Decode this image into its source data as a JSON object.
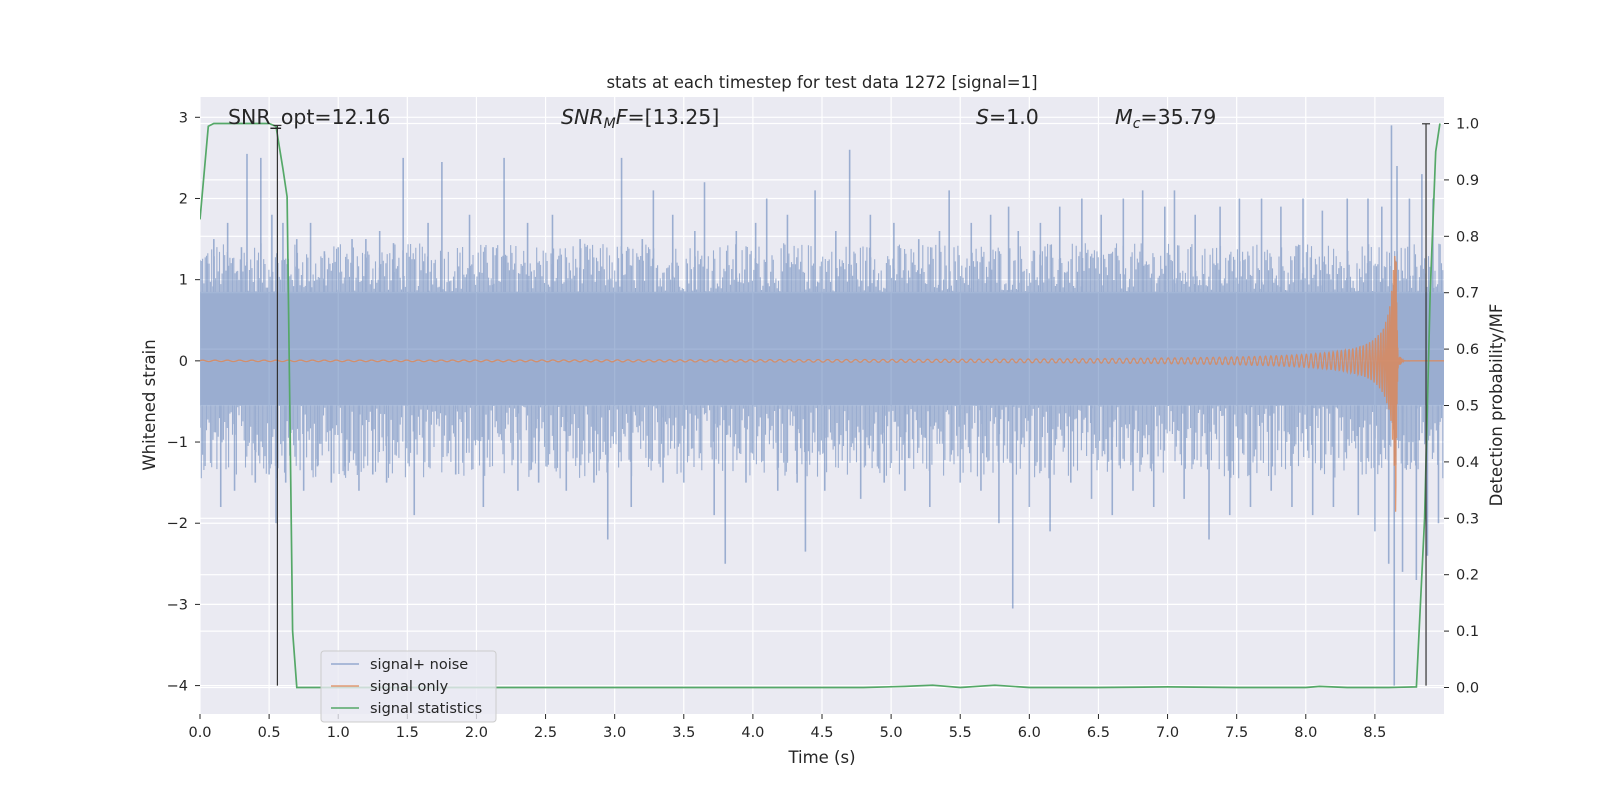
{
  "chart_data": {
    "type": "line",
    "title": "stats at each timestep for test data 1272 [signal=1]",
    "xlabel": "Time (s)",
    "ylabel": "Whitened strain",
    "y2label": "Detection probability/MF",
    "xlim": [
      0.0,
      9.0
    ],
    "ylim": [
      -4.35,
      3.25
    ],
    "y2lim": [
      -0.047,
      1.047
    ],
    "x_ticks": [
      "0.0",
      "0.5",
      "1.0",
      "1.5",
      "2.0",
      "2.5",
      "3.0",
      "3.5",
      "4.0",
      "4.5",
      "5.0",
      "5.5",
      "6.0",
      "6.5",
      "7.0",
      "7.5",
      "8.0",
      "8.5"
    ],
    "y_ticks": [
      "3",
      "2",
      "1",
      "0",
      "−1",
      "−2",
      "−3",
      "−4"
    ],
    "y2_ticks": [
      "1.0",
      "0.9",
      "0.8",
      "0.7",
      "0.6",
      "0.5",
      "0.4",
      "0.3",
      "0.2",
      "0.1",
      "0.0"
    ],
    "grid": true,
    "legend_position": "lower-left",
    "annotations": {
      "snr_opt": "SNR_opt=12.16",
      "snr_mf_sym": "SNR",
      "snr_mf_sub": "M",
      "snr_mf_sym2": "F",
      "snr_mf_val": "=[13.25]",
      "s_sym": "S",
      "s_val": "=1.0",
      "mc_sym": "M",
      "mc_sub": "c",
      "mc_val": "=35.79"
    },
    "vertical_markers": [
      {
        "x": 0.56,
        "ymin": -4.0,
        "ymax": 2.9
      },
      {
        "x": 8.87,
        "ymin": -4.0,
        "ymax": 2.92
      }
    ],
    "series": [
      {
        "name": "signal+ noise",
        "color": "#4c72b0",
        "axis": "left",
        "x": [
          0.0,
          9.0
        ],
        "band_outer": [
          -1.0,
          1.1
        ],
        "band_inner": [
          -0.55,
          0.85
        ],
        "spikes": [
          [
            0.05,
            1.2
          ],
          [
            0.1,
            1.5
          ],
          [
            0.15,
            -1.8
          ],
          [
            0.2,
            1.7
          ],
          [
            0.25,
            -1.6
          ],
          [
            0.3,
            1.4
          ],
          [
            0.34,
            2.55
          ],
          [
            0.4,
            -1.5
          ],
          [
            0.44,
            2.5
          ],
          [
            0.5,
            -1.4
          ],
          [
            0.52,
            1.8
          ],
          [
            0.55,
            -2.0
          ],
          [
            0.6,
            1.7
          ],
          [
            0.62,
            -1.5
          ],
          [
            0.7,
            1.5
          ],
          [
            0.75,
            -1.6
          ],
          [
            0.8,
            1.7
          ],
          [
            0.85,
            -1.3
          ],
          [
            0.9,
            1.35
          ],
          [
            0.95,
            -1.5
          ],
          [
            1.0,
            1.4
          ],
          [
            1.05,
            -1.3
          ],
          [
            1.1,
            1.5
          ],
          [
            1.15,
            -1.6
          ],
          [
            1.2,
            1.5
          ],
          [
            1.25,
            -1.4
          ],
          [
            1.3,
            1.6
          ],
          [
            1.35,
            -1.5
          ],
          [
            1.4,
            1.45
          ],
          [
            1.47,
            2.5
          ],
          [
            1.55,
            -1.9
          ],
          [
            1.65,
            1.7
          ],
          [
            1.75,
            2.45
          ],
          [
            1.85,
            -1.4
          ],
          [
            1.95,
            1.8
          ],
          [
            2.05,
            -1.8
          ],
          [
            2.12,
            1.4
          ],
          [
            2.2,
            2.5
          ],
          [
            2.3,
            -1.6
          ],
          [
            2.37,
            1.7
          ],
          [
            2.45,
            -1.5
          ],
          [
            2.55,
            1.8
          ],
          [
            2.65,
            -1.6
          ],
          [
            2.75,
            1.5
          ],
          [
            2.85,
            -1.5
          ],
          [
            2.95,
            -2.2
          ],
          [
            3.05,
            2.5
          ],
          [
            3.12,
            -1.8
          ],
          [
            3.2,
            1.5
          ],
          [
            3.28,
            2.1
          ],
          [
            3.35,
            -1.5
          ],
          [
            3.42,
            1.8
          ],
          [
            3.5,
            -1.5
          ],
          [
            3.58,
            1.6
          ],
          [
            3.65,
            2.2
          ],
          [
            3.72,
            -1.9
          ],
          [
            3.8,
            -2.5
          ],
          [
            3.88,
            1.6
          ],
          [
            3.95,
            -1.5
          ],
          [
            4.02,
            1.7
          ],
          [
            4.1,
            2.0
          ],
          [
            4.18,
            -1.6
          ],
          [
            4.25,
            1.8
          ],
          [
            4.32,
            -1.5
          ],
          [
            4.38,
            -2.35
          ],
          [
            4.45,
            2.1
          ],
          [
            4.52,
            -1.6
          ],
          [
            4.6,
            1.6
          ],
          [
            4.7,
            2.6
          ],
          [
            4.78,
            -1.7
          ],
          [
            4.85,
            1.8
          ],
          [
            4.95,
            -1.5
          ],
          [
            5.02,
            1.7
          ],
          [
            5.1,
            -1.6
          ],
          [
            5.2,
            1.5
          ],
          [
            5.28,
            -1.8
          ],
          [
            5.35,
            1.6
          ],
          [
            5.42,
            2.1
          ],
          [
            5.5,
            -1.5
          ],
          [
            5.58,
            1.7
          ],
          [
            5.65,
            -1.6
          ],
          [
            5.72,
            1.8
          ],
          [
            5.78,
            -2.0
          ],
          [
            5.85,
            1.9
          ],
          [
            5.88,
            -3.05
          ],
          [
            5.92,
            1.6
          ],
          [
            6.0,
            -1.8
          ],
          [
            6.08,
            1.7
          ],
          [
            6.15,
            -2.1
          ],
          [
            6.22,
            1.9
          ],
          [
            6.3,
            -1.5
          ],
          [
            6.38,
            2.0
          ],
          [
            6.45,
            -1.7
          ],
          [
            6.52,
            1.8
          ],
          [
            6.6,
            -1.9
          ],
          [
            6.68,
            2.0
          ],
          [
            6.75,
            -1.6
          ],
          [
            6.82,
            2.1
          ],
          [
            6.9,
            -1.8
          ],
          [
            6.98,
            1.9
          ],
          [
            7.05,
            2.1
          ],
          [
            7.12,
            -1.7
          ],
          [
            7.2,
            1.8
          ],
          [
            7.3,
            -2.2
          ],
          [
            7.38,
            1.9
          ],
          [
            7.45,
            -1.9
          ],
          [
            7.52,
            2.0
          ],
          [
            7.6,
            -1.8
          ],
          [
            7.68,
            2.0
          ],
          [
            7.75,
            -1.6
          ],
          [
            7.82,
            1.9
          ],
          [
            7.9,
            -1.8
          ],
          [
            7.98,
            2.0
          ],
          [
            8.05,
            -1.9
          ],
          [
            8.12,
            1.85
          ],
          [
            8.2,
            -1.8
          ],
          [
            8.3,
            2.0
          ],
          [
            8.38,
            -1.9
          ],
          [
            8.45,
            2.0
          ],
          [
            8.5,
            -2.1
          ],
          [
            8.55,
            1.9
          ],
          [
            8.6,
            -2.5
          ],
          [
            8.62,
            2.9
          ],
          [
            8.64,
            -4.0
          ],
          [
            8.66,
            2.4
          ],
          [
            8.7,
            -2.6
          ],
          [
            8.75,
            2.0
          ],
          [
            8.8,
            -2.7
          ],
          [
            8.84,
            2.3
          ],
          [
            8.88,
            -2.4
          ],
          [
            8.92,
            2.0
          ],
          [
            8.96,
            -2.0
          ]
        ]
      },
      {
        "name": "signal only",
        "color": "#dd8452",
        "axis": "left",
        "t_merger": 8.65,
        "amplitude_peak": 1.9
      },
      {
        "name": "signal statistics",
        "color": "#55a868",
        "axis": "right",
        "x": [
          0.0,
          0.06,
          0.1,
          0.2,
          0.3,
          0.4,
          0.5,
          0.55,
          0.6,
          0.63,
          0.65,
          0.67,
          0.7,
          1.0,
          2.0,
          3.0,
          4.0,
          4.8,
          5.1,
          5.3,
          5.5,
          5.75,
          6.0,
          6.5,
          7.0,
          7.5,
          8.0,
          8.1,
          8.3,
          8.6,
          8.8,
          8.86,
          8.9,
          8.94,
          8.97
        ],
        "values": [
          0.83,
          0.995,
          1.0,
          1.0,
          1.0,
          1.0,
          1.0,
          0.995,
          0.92,
          0.87,
          0.5,
          0.1,
          0.0,
          0.0,
          0.0,
          0.0,
          0.0,
          0.0,
          0.002,
          0.004,
          0.0,
          0.004,
          0.0,
          0.0,
          0.001,
          0.0,
          0.0,
          0.002,
          0.0,
          0.0,
          0.001,
          0.3,
          0.7,
          0.95,
          1.0
        ]
      }
    ]
  }
}
